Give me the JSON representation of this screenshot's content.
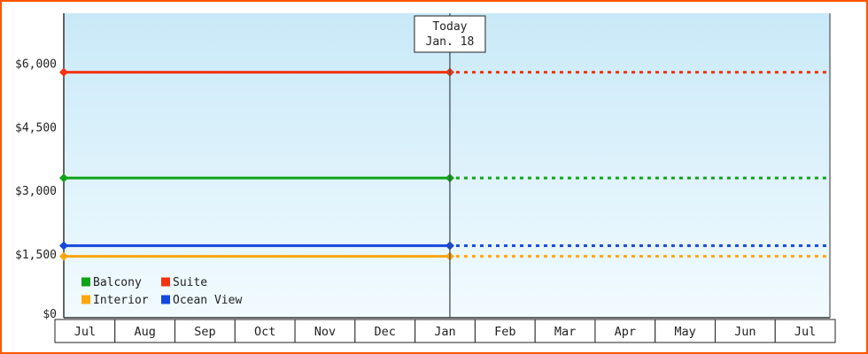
{
  "frame": {
    "border_color": "#ff5500",
    "background": "#ffffff"
  },
  "chart_data": {
    "type": "line",
    "description": "Flat price lines per cabin category; solid up to today marker, dotted projection after today",
    "x_axis": {
      "months": [
        "Jul",
        "Aug",
        "Sep",
        "Oct",
        "Nov",
        "Dec",
        "Jan",
        "Feb",
        "Mar",
        "Apr",
        "May",
        "Jun",
        "Jul"
      ]
    },
    "y_axis": {
      "ticks": [
        {
          "label": "$6,000",
          "value": 6000
        },
        {
          "label": "$4,500",
          "value": 4500
        },
        {
          "label": "$3,000",
          "value": 3000
        },
        {
          "label": "$1,500",
          "value": 1500
        },
        {
          "label": "$0",
          "value": 0
        }
      ],
      "max_value": 6000
    },
    "today": {
      "month_index": 6,
      "day_fraction": 0.58,
      "label_line1": "Today",
      "label_line2": "Jan. 18"
    },
    "series": [
      {
        "name": "Balcony",
        "color": "#0fa317",
        "value": 3300
      },
      {
        "name": "Suite",
        "color": "#f2330f",
        "value": 5800
      },
      {
        "name": "Interior",
        "color": "#ffa60f",
        "value": 1450
      },
      {
        "name": "Ocean View",
        "color": "#1648dd",
        "value": 1700
      }
    ],
    "legend": {
      "position": "bottom-left",
      "columns": 2
    },
    "plot_background": {
      "top": "#c9e9f8",
      "bottom": "#f2fbff"
    },
    "line_style": {
      "before_today": "solid",
      "after_today": "dotted",
      "marker": "diamond"
    }
  }
}
